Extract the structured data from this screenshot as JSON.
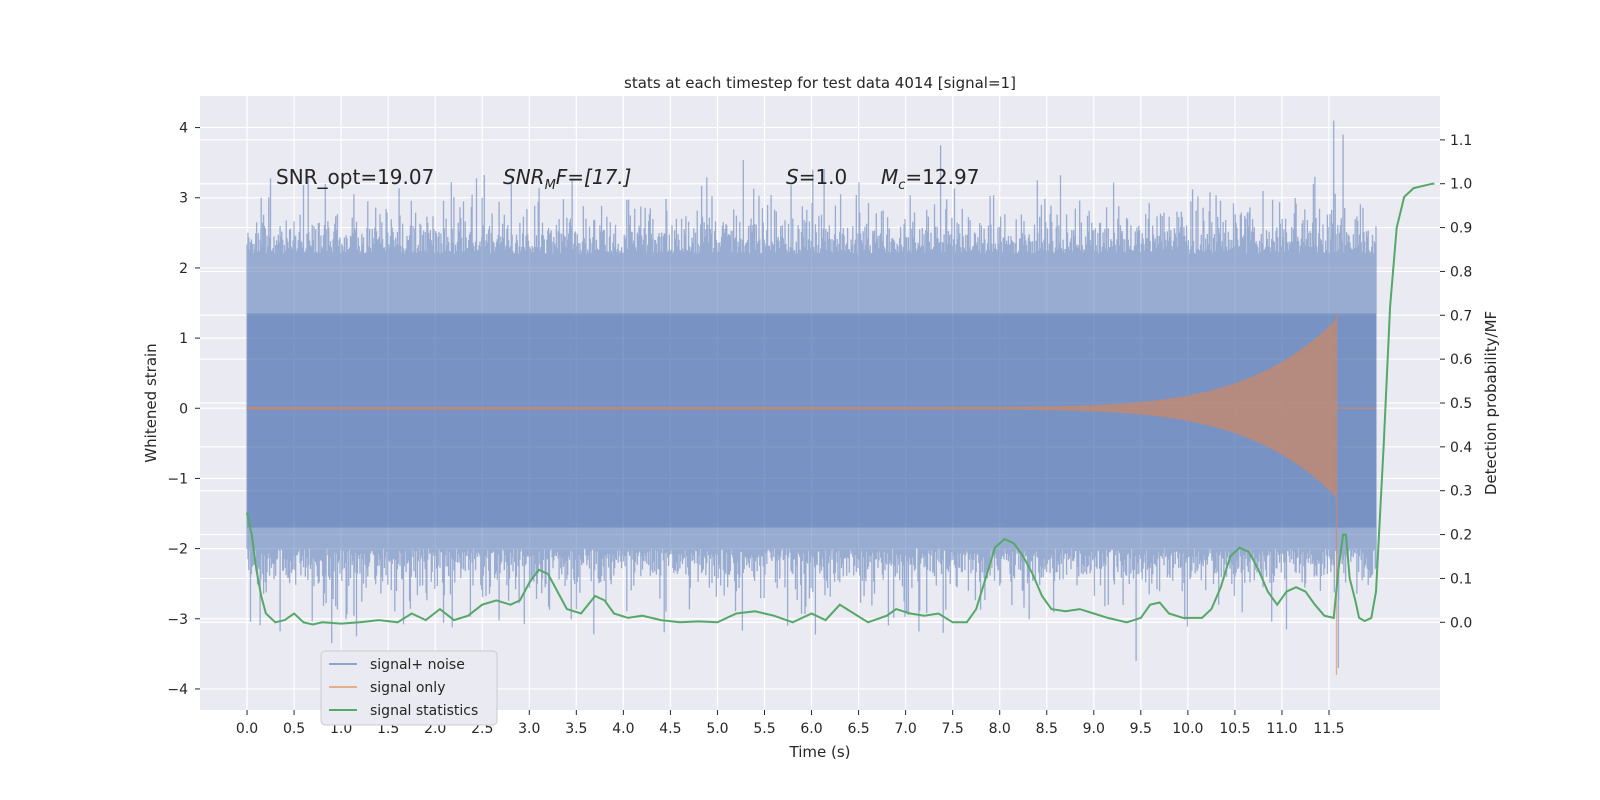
{
  "chart_data": {
    "type": "line",
    "title": "stats at each timestep for test data 4014 [signal=1]",
    "xlabel": "Time (s)",
    "ylabel_left": "Whitened strain",
    "ylabel_right": "Detection probability/MF",
    "xlim": [
      -0.5,
      12.68
    ],
    "ylim_left": [
      -4.3,
      4.45
    ],
    "ylim_right": [
      -0.2,
      1.2
    ],
    "grid": true,
    "legend_placement": "lower-left",
    "x_ticks": [
      "0.0",
      "0.5",
      "1.0",
      "1.5",
      "2.0",
      "2.5",
      "3.0",
      "3.5",
      "4.0",
      "4.5",
      "5.0",
      "5.5",
      "6.0",
      "6.5",
      "7.0",
      "7.5",
      "8.0",
      "8.5",
      "9.0",
      "9.5",
      "10.0",
      "10.5",
      "11.0",
      "11.5"
    ],
    "y_ticks_left": [
      "4",
      "3",
      "2",
      "1",
      "0",
      "−1",
      "−2",
      "−3",
      "−4"
    ],
    "y_ticks_right": [
      "1.1",
      "1.0",
      "0.9",
      "0.8",
      "0.7",
      "0.6",
      "0.5",
      "0.4",
      "0.3",
      "0.2",
      "0.1",
      "0.0"
    ],
    "annotations": {
      "snr_opt": "SNR_opt=19.07",
      "snr_mf_sym": "SNR",
      "snr_mf_sub": "M",
      "snr_mf_rest": "F=[17.]",
      "s_sym": "S",
      "s_val": "=1.0",
      "mc_sym": "M",
      "mc_sub": "c",
      "mc_val": "=12.97"
    },
    "series": [
      {
        "name": "signal+ noise",
        "color": "#4c72b0",
        "axis": "left",
        "x_range": [
          0.0,
          12.0
        ],
        "envelope_upper": 2.3,
        "envelope_lower": -2.1,
        "peaks": [
          [
            0.15,
            3.0
          ],
          [
            0.65,
            3.3
          ],
          [
            0.9,
            -3.35
          ],
          [
            2.5,
            3.0
          ],
          [
            7.4,
            -3.2
          ],
          [
            8.4,
            3.25
          ],
          [
            9.45,
            -3.6
          ],
          [
            11.35,
            3.3
          ],
          [
            11.55,
            4.1
          ],
          [
            11.6,
            -3.7
          ],
          [
            11.65,
            3.9
          ]
        ]
      },
      {
        "name": "signal only",
        "color": "#dd8452",
        "axis": "left",
        "chirp_t0": 6.5,
        "merger_t": 11.58,
        "peak_upper": 1.35,
        "peak_lower": -3.8,
        "end_t": 12.0
      },
      {
        "name": "signal statistics",
        "color": "#55a868",
        "axis": "right",
        "points": [
          [
            0.0,
            0.25
          ],
          [
            0.05,
            0.2
          ],
          [
            0.1,
            0.12
          ],
          [
            0.15,
            0.06
          ],
          [
            0.2,
            0.02
          ],
          [
            0.25,
            0.01
          ],
          [
            0.3,
            0.0
          ],
          [
            0.4,
            0.005
          ],
          [
            0.5,
            0.02
          ],
          [
            0.6,
            0.0
          ],
          [
            0.7,
            -0.005
          ],
          [
            0.8,
            0.0
          ],
          [
            1.0,
            -0.003
          ],
          [
            1.2,
            0.0
          ],
          [
            1.4,
            0.005
          ],
          [
            1.6,
            0.0
          ],
          [
            1.75,
            0.02
          ],
          [
            1.9,
            0.005
          ],
          [
            2.05,
            0.03
          ],
          [
            2.2,
            0.005
          ],
          [
            2.35,
            0.015
          ],
          [
            2.5,
            0.04
          ],
          [
            2.65,
            0.05
          ],
          [
            2.8,
            0.04
          ],
          [
            2.9,
            0.05
          ],
          [
            3.0,
            0.09
          ],
          [
            3.1,
            0.12
          ],
          [
            3.2,
            0.11
          ],
          [
            3.3,
            0.07
          ],
          [
            3.4,
            0.03
          ],
          [
            3.55,
            0.02
          ],
          [
            3.7,
            0.06
          ],
          [
            3.8,
            0.05
          ],
          [
            3.9,
            0.02
          ],
          [
            4.05,
            0.01
          ],
          [
            4.2,
            0.015
          ],
          [
            4.4,
            0.005
          ],
          [
            4.6,
            0.0
          ],
          [
            4.8,
            0.002
          ],
          [
            5.0,
            0.0
          ],
          [
            5.2,
            0.02
          ],
          [
            5.4,
            0.025
          ],
          [
            5.6,
            0.015
          ],
          [
            5.8,
            0.0
          ],
          [
            6.0,
            0.02
          ],
          [
            6.15,
            0.005
          ],
          [
            6.3,
            0.04
          ],
          [
            6.45,
            0.02
          ],
          [
            6.6,
            0.0
          ],
          [
            6.8,
            0.015
          ],
          [
            6.9,
            0.03
          ],
          [
            7.05,
            0.02
          ],
          [
            7.2,
            0.015
          ],
          [
            7.35,
            0.02
          ],
          [
            7.5,
            0.0
          ],
          [
            7.65,
            0.0
          ],
          [
            7.75,
            0.03
          ],
          [
            7.85,
            0.1
          ],
          [
            7.95,
            0.17
          ],
          [
            8.05,
            0.19
          ],
          [
            8.15,
            0.18
          ],
          [
            8.25,
            0.15
          ],
          [
            8.35,
            0.11
          ],
          [
            8.45,
            0.06
          ],
          [
            8.55,
            0.03
          ],
          [
            8.7,
            0.025
          ],
          [
            8.85,
            0.03
          ],
          [
            9.0,
            0.02
          ],
          [
            9.15,
            0.01
          ],
          [
            9.35,
            0.0
          ],
          [
            9.5,
            0.01
          ],
          [
            9.6,
            0.04
          ],
          [
            9.7,
            0.045
          ],
          [
            9.8,
            0.02
          ],
          [
            9.95,
            0.01
          ],
          [
            10.15,
            0.01
          ],
          [
            10.25,
            0.03
          ],
          [
            10.35,
            0.08
          ],
          [
            10.45,
            0.15
          ],
          [
            10.55,
            0.17
          ],
          [
            10.65,
            0.16
          ],
          [
            10.75,
            0.12
          ],
          [
            10.85,
            0.07
          ],
          [
            10.95,
            0.04
          ],
          [
            11.05,
            0.07
          ],
          [
            11.15,
            0.08
          ],
          [
            11.25,
            0.07
          ],
          [
            11.35,
            0.04
          ],
          [
            11.45,
            0.015
          ],
          [
            11.55,
            0.01
          ],
          [
            11.6,
            0.12
          ],
          [
            11.65,
            0.2
          ],
          [
            11.68,
            0.2
          ],
          [
            11.72,
            0.1
          ],
          [
            11.78,
            0.05
          ],
          [
            11.82,
            0.01
          ],
          [
            11.88,
            0.003
          ],
          [
            11.95,
            0.01
          ],
          [
            12.0,
            0.07
          ],
          [
            12.08,
            0.4
          ],
          [
            12.15,
            0.72
          ],
          [
            12.22,
            0.9
          ],
          [
            12.3,
            0.97
          ],
          [
            12.4,
            0.99
          ],
          [
            12.6,
            1.0
          ],
          [
            12.62,
            1.0
          ]
        ]
      }
    ]
  }
}
